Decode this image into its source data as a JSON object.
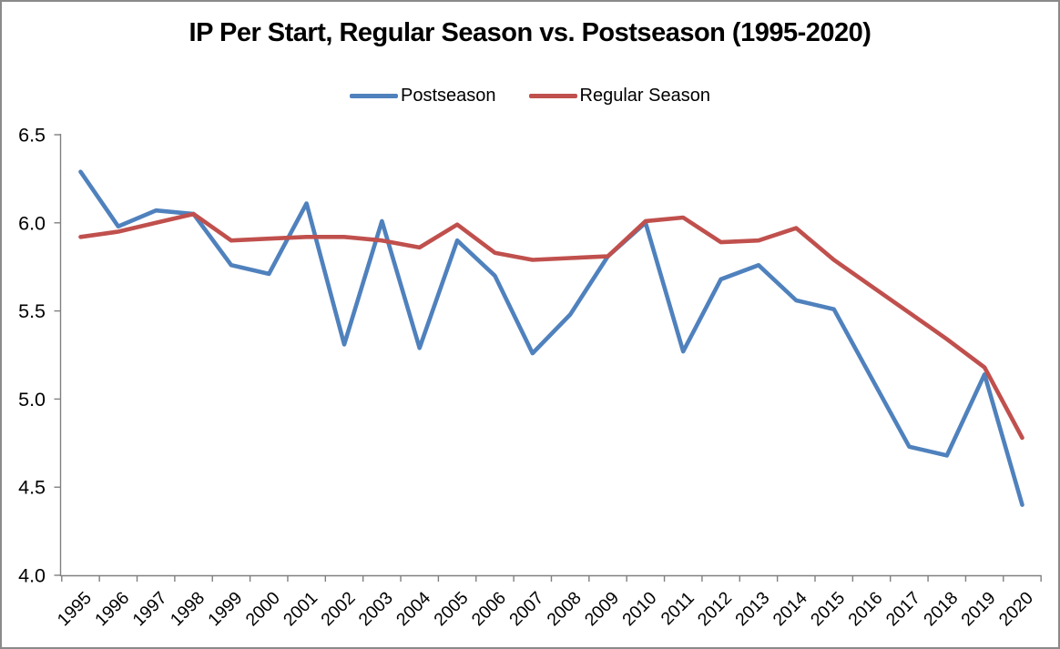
{
  "frame": {
    "background_color": "#FFFFFF",
    "border_color": "#8A8A8A"
  },
  "chart_data": {
    "type": "line",
    "title": "IP Per Start, Regular Season vs. Postseason (1995-2020)",
    "x": [
      1995,
      1996,
      1997,
      1998,
      1999,
      2000,
      2001,
      2002,
      2003,
      2004,
      2005,
      2006,
      2007,
      2008,
      2009,
      2010,
      2011,
      2012,
      2013,
      2014,
      2015,
      2016,
      2017,
      2018,
      2019,
      2020
    ],
    "series": [
      {
        "name": "Postseason",
        "color": "#4F81BD",
        "values": [
          6.29,
          5.98,
          6.07,
          6.05,
          5.76,
          5.71,
          6.11,
          5.31,
          6.01,
          5.29,
          5.9,
          5.7,
          5.26,
          5.48,
          5.81,
          6.0,
          5.27,
          5.68,
          5.76,
          5.56,
          5.51,
          5.12,
          4.73,
          4.68,
          5.14,
          4.4
        ]
      },
      {
        "name": "Regular Season",
        "color": "#C0504D",
        "values": [
          5.92,
          5.95,
          6.0,
          6.05,
          5.9,
          5.91,
          5.92,
          5.92,
          5.9,
          5.86,
          5.99,
          5.83,
          5.79,
          5.8,
          5.81,
          6.01,
          6.03,
          5.89,
          5.9,
          5.97,
          5.79,
          5.64,
          5.49,
          5.34,
          5.18,
          4.78
        ]
      }
    ],
    "xlabel": "",
    "ylabel": "",
    "ylim": [
      4.0,
      6.5
    ],
    "ytick_step": 0.5,
    "ytick_labels": [
      "4.0",
      "4.5",
      "5.0",
      "5.5",
      "6.0",
      "6.5"
    ],
    "grid": false,
    "legend_position": "top-center",
    "x_label_rotation_deg": -45,
    "axis_color": "#808080"
  }
}
